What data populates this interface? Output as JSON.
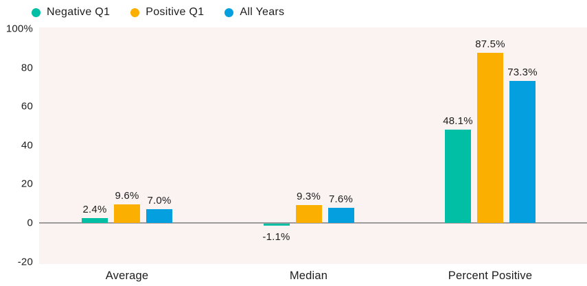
{
  "chart_data": {
    "type": "bar",
    "title": "",
    "xlabel": "",
    "ylabel": "",
    "categories": [
      "Average",
      "Median",
      "Percent Positive"
    ],
    "series": [
      {
        "name": "Negative Q1",
        "color": "#00BFA5",
        "values": [
          2.4,
          -1.1,
          48.1
        ],
        "labels": [
          "2.4%",
          "-1.1%",
          "48.1%"
        ]
      },
      {
        "name": "Positive Q1",
        "color": "#FBAF00",
        "values": [
          9.6,
          9.3,
          87.5
        ],
        "labels": [
          "9.6%",
          "9.3%",
          "87.5%"
        ]
      },
      {
        "name": "All Years",
        "color": "#049FDF",
        "values": [
          7.0,
          7.6,
          73.3
        ],
        "labels": [
          "7.0%",
          "7.6%",
          "73.3%"
        ]
      }
    ],
    "ylim": [
      -20,
      100
    ],
    "yticks": [
      {
        "value": 100,
        "label": "100%"
      },
      {
        "value": 80,
        "label": "80"
      },
      {
        "value": 60,
        "label": "60"
      },
      {
        "value": 40,
        "label": "40"
      },
      {
        "value": 20,
        "label": "20"
      },
      {
        "value": 0,
        "label": "0"
      },
      {
        "value": -20,
        "label": "-20"
      }
    ],
    "legend_position": "top",
    "grid": false,
    "value_labels_shown": true
  },
  "theme": {
    "plot_background": "#FBF3F2",
    "page_background": "#FFFFFF",
    "axis_line": "#9C9A9A",
    "text_color": "#1C1C1C"
  }
}
